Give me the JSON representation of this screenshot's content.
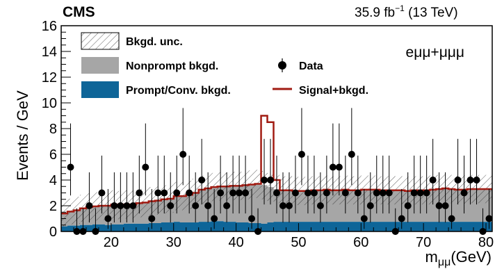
{
  "header": {
    "experiment": "CMS",
    "lumi": "35.9 fb",
    "lumi_sup": "−1",
    "energy": "(13 TeV)"
  },
  "channel_label": "eμμ+μμμ",
  "chart_data": {
    "type": "histogram",
    "xlabel": "m",
    "xlabel_sub": "μμ",
    "xlabel_unit": "(GeV)",
    "ylabel": "Events / GeV",
    "xlim": [
      12,
      81
    ],
    "ylim": [
      0,
      16
    ],
    "x_ticks": [
      20,
      30,
      40,
      50,
      60,
      70,
      80
    ],
    "y_ticks": [
      0,
      2,
      4,
      6,
      8,
      10,
      12,
      14,
      16
    ],
    "bin_edges": [
      12,
      13,
      14,
      15,
      16,
      17,
      18,
      19,
      20,
      21,
      22,
      23,
      24,
      25,
      26,
      27,
      28,
      29,
      30,
      31,
      32,
      33,
      34,
      35,
      36,
      37,
      38,
      39,
      40,
      41,
      42,
      43,
      44,
      45,
      46,
      47,
      48,
      49,
      50,
      51,
      52,
      53,
      54,
      55,
      56,
      57,
      58,
      59,
      60,
      61,
      62,
      63,
      64,
      65,
      66,
      67,
      68,
      69,
      70,
      71,
      72,
      73,
      74,
      75,
      76,
      77,
      78,
      79,
      80,
      81
    ],
    "series": [
      {
        "name": "Prompt/Conv. bkgd.",
        "color": "#0e6598",
        "values": [
          0.4,
          0.45,
          0.45,
          0.5,
          0.5,
          0.55,
          0.55,
          0.5,
          0.55,
          0.55,
          0.6,
          0.6,
          0.6,
          0.6,
          0.65,
          0.65,
          0.7,
          0.7,
          0.75,
          0.7,
          0.7,
          0.7,
          0.75,
          0.75,
          0.8,
          0.8,
          0.75,
          0.75,
          0.7,
          0.7,
          0.65,
          0.65,
          0.6,
          0.7,
          0.75,
          0.75,
          0.75,
          0.75,
          0.75,
          0.75,
          0.75,
          0.75,
          0.75,
          0.75,
          0.75,
          0.75,
          0.75,
          0.75,
          0.75,
          0.75,
          0.75,
          0.75,
          0.75,
          0.75,
          0.75,
          0.75,
          0.75,
          0.75,
          0.75,
          0.75,
          0.75,
          0.75,
          0.75,
          0.75,
          0.75,
          0.75,
          0.75,
          0.75,
          0.75
        ]
      },
      {
        "name": "Nonprompt bkgd.",
        "color": "#a6a6a6",
        "values": [
          1.0,
          1.1,
          1.2,
          1.3,
          1.4,
          1.4,
          1.45,
          1.5,
          1.55,
          1.5,
          1.5,
          1.5,
          1.6,
          1.65,
          1.7,
          1.75,
          1.8,
          1.85,
          2.0,
          2.05,
          2.15,
          2.3,
          2.5,
          2.6,
          2.65,
          2.7,
          2.75,
          2.8,
          2.85,
          2.9,
          3.0,
          3.05,
          3.0,
          2.75,
          2.55,
          2.45,
          2.45,
          2.4,
          2.4,
          2.4,
          2.45,
          2.45,
          2.5,
          2.45,
          2.45,
          2.5,
          2.45,
          2.45,
          2.5,
          2.5,
          2.5,
          2.45,
          2.45,
          2.45,
          2.45,
          2.4,
          2.45,
          2.45,
          2.45,
          2.5,
          2.55,
          2.6,
          2.55,
          2.5,
          2.5,
          2.55,
          2.55,
          2.55,
          2.55
        ]
      }
    ],
    "total_background": [
      1.4,
      1.55,
      1.65,
      1.8,
      1.9,
      1.95,
      2.0,
      2.0,
      2.1,
      2.05,
      2.1,
      2.1,
      2.2,
      2.25,
      2.35,
      2.4,
      2.5,
      2.55,
      2.75,
      2.75,
      2.85,
      3.0,
      3.25,
      3.35,
      3.45,
      3.5,
      3.5,
      3.55,
      3.55,
      3.6,
      3.65,
      3.7,
      3.6,
      3.45,
      3.3,
      3.2,
      3.2,
      3.15,
      3.15,
      3.15,
      3.2,
      3.2,
      3.25,
      3.2,
      3.2,
      3.25,
      3.2,
      3.2,
      3.25,
      3.25,
      3.25,
      3.2,
      3.2,
      3.2,
      3.2,
      3.15,
      3.2,
      3.2,
      3.2,
      3.25,
      3.3,
      3.35,
      3.3,
      3.25,
      3.25,
      3.3,
      3.3,
      3.3,
      3.3
    ],
    "uncertainty_halfwidth": [
      1.0,
      1.0,
      1.05,
      1.05,
      1.1,
      1.1,
      1.1,
      1.1,
      1.1,
      1.1,
      1.1,
      1.1,
      1.1,
      1.1,
      1.1,
      1.1,
      1.1,
      1.1,
      1.1,
      1.1,
      1.1,
      1.1,
      1.1,
      1.1,
      1.1,
      1.1,
      1.1,
      1.1,
      1.1,
      1.1,
      1.1,
      1.1,
      1.1,
      1.1,
      1.1,
      1.1,
      1.1,
      1.1,
      1.1,
      1.1,
      1.1,
      1.1,
      1.1,
      1.1,
      1.1,
      1.1,
      1.1,
      1.1,
      1.1,
      1.1,
      1.1,
      1.1,
      1.1,
      1.1,
      1.1,
      1.1,
      1.1,
      1.1,
      1.1,
      1.1,
      1.1,
      1.1,
      1.1,
      1.1,
      1.1,
      1.1,
      1.1,
      1.1,
      1.1
    ],
    "signal_plus_bkgd": [
      1.4,
      1.55,
      1.65,
      1.8,
      1.9,
      1.95,
      2.0,
      2.0,
      2.1,
      2.05,
      2.1,
      2.1,
      2.2,
      2.25,
      2.35,
      2.4,
      2.5,
      2.55,
      2.75,
      2.75,
      2.85,
      3.0,
      3.25,
      3.35,
      3.45,
      3.5,
      3.5,
      3.55,
      3.55,
      3.6,
      3.65,
      3.7,
      9.0,
      8.5,
      4.0,
      3.2,
      3.2,
      3.15,
      3.15,
      3.15,
      3.2,
      3.2,
      3.25,
      3.2,
      3.2,
      3.25,
      3.2,
      3.2,
      3.25,
      3.25,
      3.25,
      3.2,
      3.2,
      3.2,
      3.2,
      3.15,
      3.2,
      3.2,
      3.2,
      3.25,
      3.3,
      3.35,
      3.3,
      3.25,
      3.25,
      3.3,
      3.3,
      3.3,
      3.3
    ],
    "data_points": {
      "name": "Data",
      "x": [
        13.5,
        14.5,
        15.5,
        16.5,
        17.5,
        18.5,
        19.5,
        20.5,
        21.5,
        22.5,
        23.5,
        24.5,
        25.5,
        26.5,
        27.5,
        28.5,
        29.5,
        30.5,
        31.5,
        32.5,
        33.5,
        34.5,
        35.5,
        36.5,
        37.5,
        38.5,
        39.5,
        40.5,
        41.5,
        42.5,
        43.5,
        44.5,
        45.5,
        46.5,
        47.5,
        48.5,
        49.5,
        50.5,
        51.5,
        52.5,
        53.5,
        54.5,
        55.5,
        56.5,
        57.5,
        58.5,
        59.5,
        60.5,
        61.5,
        62.5,
        63.5,
        64.5,
        65.5,
        66.5,
        67.5,
        68.5,
        69.5,
        70.5,
        71.5,
        72.5,
        73.5,
        74.5,
        75.5,
        76.5,
        77.5,
        78.5,
        79.5,
        80.5
      ],
      "y": [
        5,
        0,
        0,
        2,
        0,
        3,
        1,
        2,
        2,
        2,
        2,
        3,
        5,
        1,
        3,
        3,
        2,
        3,
        6,
        3,
        2,
        4,
        2,
        1,
        3,
        2,
        3,
        3,
        3,
        1,
        0,
        4,
        4,
        3,
        2,
        2,
        3,
        6,
        3,
        3,
        2,
        3,
        5,
        5,
        3,
        6,
        3,
        1,
        2,
        3,
        3,
        3,
        0,
        1,
        2,
        3,
        3,
        3,
        4,
        2,
        2,
        1,
        4,
        3,
        4,
        4,
        0,
        1
      ],
      "err_up": [
        3.4,
        1.8,
        1.8,
        2.6,
        1.8,
        2.9,
        2.3,
        2.6,
        2.6,
        2.6,
        2.6,
        2.9,
        3.4,
        2.3,
        2.9,
        2.9,
        2.6,
        2.9,
        3.6,
        2.9,
        2.6,
        3.2,
        2.6,
        2.3,
        2.9,
        2.6,
        2.9,
        2.9,
        2.9,
        2.3,
        1.8,
        3.2,
        3.2,
        2.9,
        2.6,
        2.6,
        2.9,
        3.6,
        2.9,
        2.9,
        2.6,
        2.9,
        3.4,
        3.4,
        2.9,
        3.6,
        2.9,
        2.3,
        2.6,
        2.9,
        2.9,
        2.9,
        1.8,
        2.3,
        2.6,
        2.9,
        2.9,
        2.9,
        3.2,
        2.6,
        2.6,
        2.3,
        3.2,
        2.9,
        3.2,
        3.2,
        1.8,
        2.3
      ],
      "err_down": [
        2.2,
        0,
        0,
        1.3,
        0,
        1.6,
        0.8,
        1.3,
        1.3,
        1.3,
        1.3,
        1.6,
        2.2,
        0.8,
        1.6,
        1.6,
        1.3,
        1.6,
        2.4,
        1.6,
        1.3,
        1.9,
        1.3,
        0.8,
        1.6,
        1.3,
        1.6,
        1.6,
        1.6,
        0.8,
        0,
        1.9,
        1.9,
        1.6,
        1.3,
        1.3,
        1.6,
        2.4,
        1.6,
        1.6,
        1.3,
        1.6,
        2.2,
        2.2,
        1.6,
        2.4,
        1.6,
        0.8,
        1.3,
        1.6,
        1.6,
        1.6,
        0,
        0.8,
        1.3,
        1.6,
        1.6,
        1.6,
        1.9,
        1.3,
        1.3,
        0.8,
        1.9,
        1.6,
        1.9,
        1.9,
        0,
        0.8
      ]
    },
    "legend": [
      {
        "label": "Bkgd. unc.",
        "kind": "hatch"
      },
      {
        "label": "Nonprompt bkgd.",
        "kind": "fill",
        "color": "#a6a6a6"
      },
      {
        "label": "Prompt/Conv. bkgd.",
        "kind": "fill",
        "color": "#0e6598"
      },
      {
        "label": "Data",
        "kind": "marker"
      },
      {
        "label": "Signal+bkgd.",
        "kind": "line",
        "color": "#a11b12"
      }
    ],
    "legend_position": "top",
    "signal_color": "#a11b12",
    "grid": false
  }
}
